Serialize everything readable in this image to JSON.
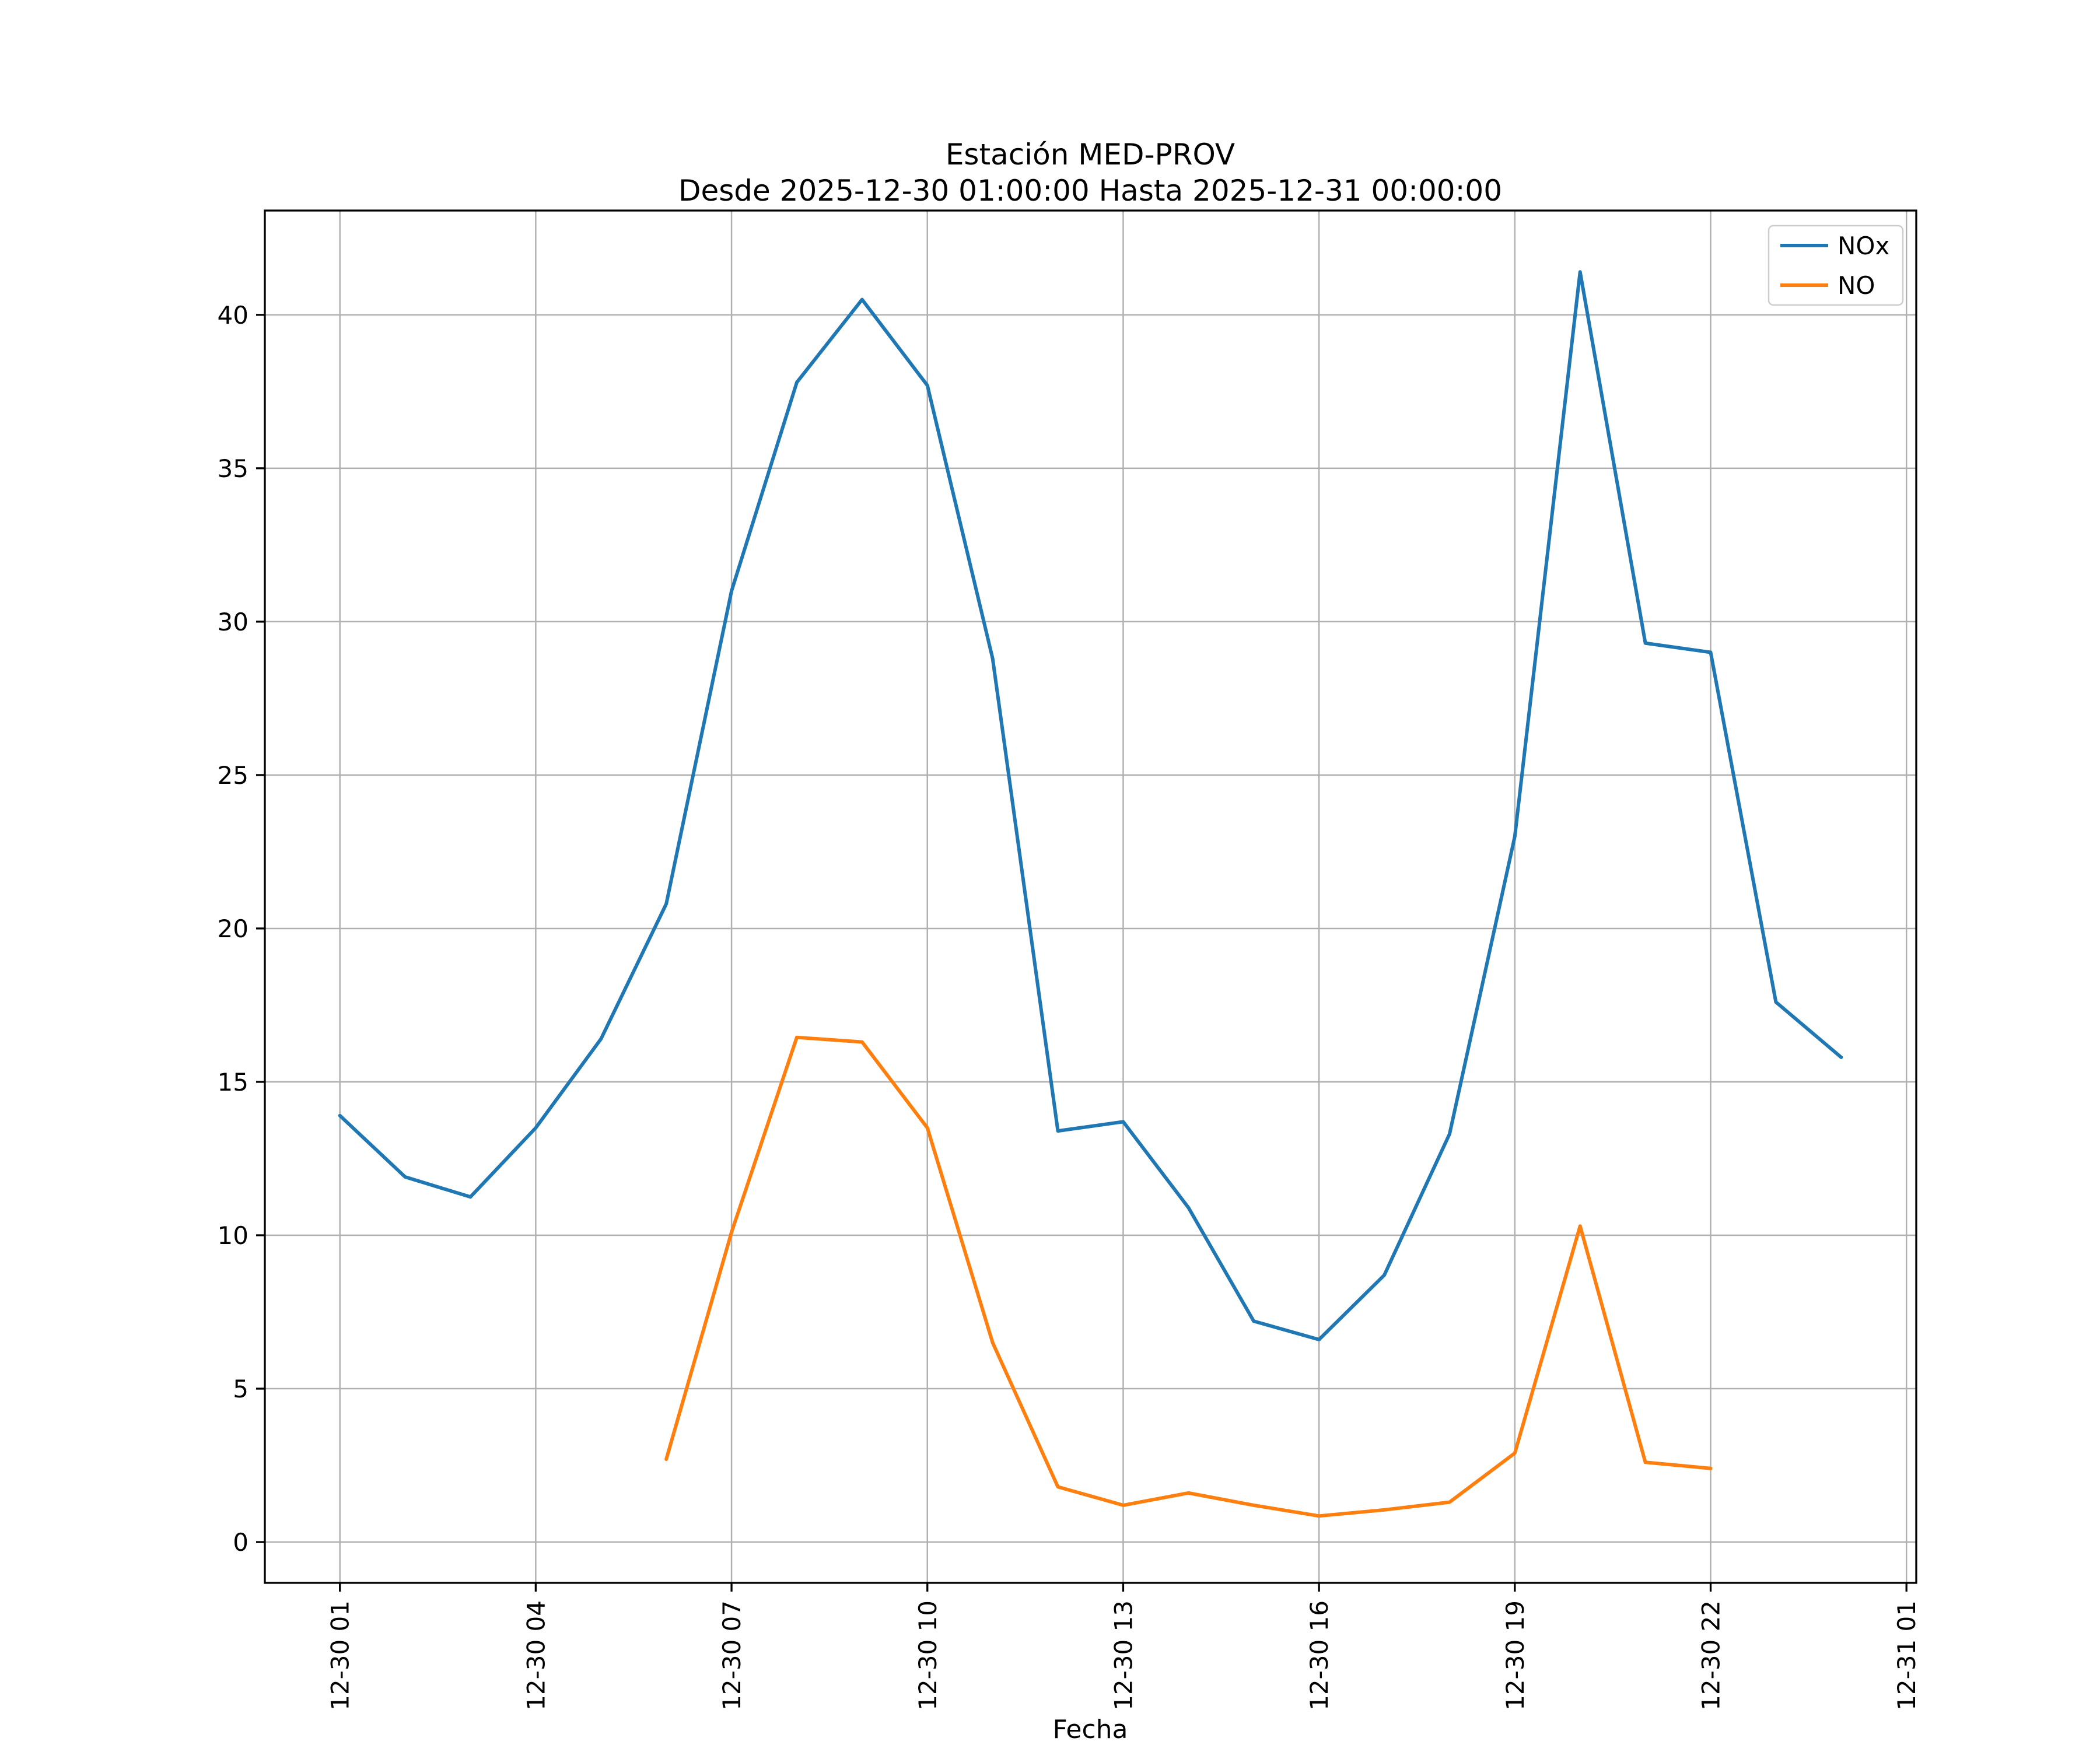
{
  "chart_data": {
    "type": "line",
    "title": "Estación MED-PROV",
    "subtitle": "Desde 2025-12-30 01:00:00 Hasta 2025-12-31 00:00:00",
    "xlabel": "Fecha",
    "ylabel": "",
    "grid": true,
    "background_color": "#ffffff",
    "grid_color": "#b0b0b0",
    "axes_color": "#000000",
    "xlim": [
      -0.15,
      25.15
    ],
    "ylim": [
      -1.33,
      43.4
    ],
    "x_tick_hours": [
      1,
      4,
      7,
      10,
      13,
      16,
      19,
      22,
      25
    ],
    "x_tick_labels": [
      "12-30 01",
      "12-30 04",
      "12-30 07",
      "12-30 10",
      "12-30 13",
      "12-30 16",
      "12-30 19",
      "12-30 22",
      "12-31 01"
    ],
    "y_ticks": [
      0,
      5,
      10,
      15,
      20,
      25,
      30,
      35,
      40
    ],
    "legend": {
      "position": "upper right",
      "entries": [
        "NOx",
        "NO"
      ]
    },
    "series": [
      {
        "name": "NOx",
        "color": "#1f77b4",
        "x": [
          1,
          2,
          3,
          4,
          5,
          6,
          7,
          8,
          9,
          10,
          11,
          12,
          13,
          14,
          15,
          16,
          17,
          18,
          19,
          20,
          21,
          22,
          23,
          24
        ],
        "values": [
          13.9,
          11.9,
          11.25,
          13.5,
          16.4,
          20.8,
          31.0,
          37.8,
          40.5,
          37.7,
          28.8,
          13.4,
          13.7,
          10.9,
          7.2,
          6.6,
          8.7,
          13.3,
          23.0,
          41.4,
          29.3,
          29.0,
          17.6,
          15.8
        ]
      },
      {
        "name": "NO",
        "color": "#ff7f0e",
        "x": [
          6,
          7,
          8,
          9,
          10,
          11,
          12,
          13,
          14,
          15,
          16,
          17,
          18,
          19,
          20,
          21,
          22
        ],
        "values": [
          2.7,
          10.1,
          16.45,
          16.3,
          13.5,
          6.5,
          1.8,
          1.2,
          1.6,
          1.2,
          0.85,
          1.05,
          1.3,
          2.9,
          10.3,
          2.6,
          2.4
        ]
      }
    ]
  }
}
